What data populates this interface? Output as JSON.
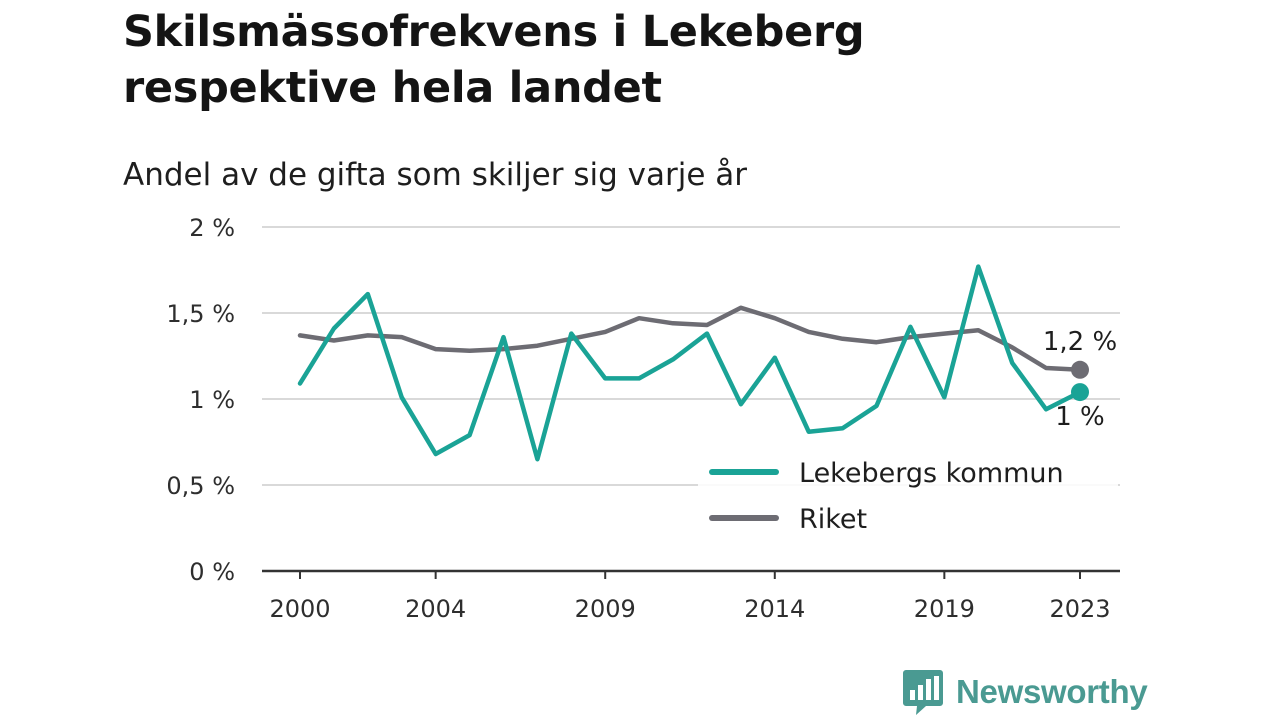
{
  "title": "Skilsmässofrekvens i Lekeberg respektive hela landet",
  "subtitle": "Andel av de gifta som skiljer sig varje år",
  "brand": "Newsworthy",
  "colors": {
    "lekeberg": "#1aa396",
    "riket": "#6d6c73",
    "grid": "#d9d9d9",
    "axis": "#333333",
    "brand": "#4a9a92"
  },
  "chart_data": {
    "type": "line",
    "x": [
      2000,
      2001,
      2002,
      2003,
      2004,
      2005,
      2006,
      2007,
      2008,
      2009,
      2010,
      2011,
      2012,
      2013,
      2014,
      2015,
      2016,
      2017,
      2018,
      2019,
      2020,
      2021,
      2022,
      2023
    ],
    "series": [
      {
        "name": "Lekebergs kommun",
        "color": "#1aa396",
        "values": [
          1.09,
          1.41,
          1.61,
          1.01,
          0.68,
          0.79,
          1.36,
          0.65,
          1.38,
          1.12,
          1.12,
          1.23,
          1.38,
          0.97,
          1.24,
          0.81,
          0.83,
          0.96,
          1.42,
          1.01,
          1.77,
          1.21,
          0.94,
          1.04
        ],
        "end_label": "1 %"
      },
      {
        "name": "Riket",
        "color": "#6d6c73",
        "values": [
          1.37,
          1.34,
          1.37,
          1.36,
          1.29,
          1.28,
          1.29,
          1.31,
          1.35,
          1.39,
          1.47,
          1.44,
          1.43,
          1.53,
          1.47,
          1.39,
          1.35,
          1.33,
          1.36,
          1.38,
          1.4,
          1.3,
          1.18,
          1.17
        ],
        "end_label": "1,2 %"
      }
    ],
    "ylim": [
      0,
      2
    ],
    "y_ticks": [
      0,
      0.5,
      1,
      1.5,
      2
    ],
    "y_tick_labels": [
      "0 %",
      "0,5 %",
      "1 %",
      "1,5 %",
      "2 %"
    ],
    "x_ticks": [
      2000,
      2004,
      2009,
      2014,
      2019,
      2023
    ],
    "x_tick_labels": [
      "2000",
      "2004",
      "2009",
      "2014",
      "2019",
      "2023"
    ],
    "grid": true,
    "legend": "bottom-right"
  }
}
